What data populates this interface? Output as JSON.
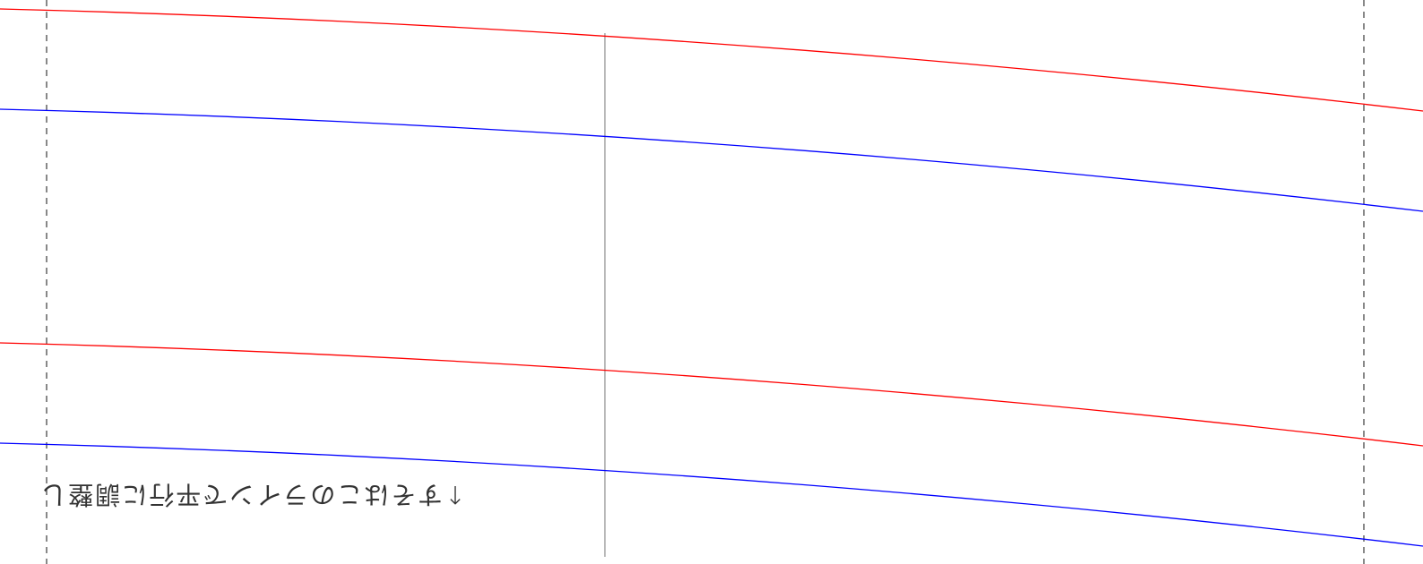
{
  "diagram": {
    "caption": "↑すそはこのラインで平行に調整し",
    "colors": {
      "background": "#ffffff",
      "upper_curve": "#ff0000",
      "lower_curve": "#0000ff",
      "center_line": "#888888",
      "guide_line": "#555555",
      "caption_text": "#333333"
    },
    "line_styles": {
      "guides": "dashed",
      "center": "solid"
    },
    "curve_pairs": [
      {
        "name": "top-pair",
        "colors": [
          "#ff0000",
          "#0000ff"
        ]
      },
      {
        "name": "bottom-pair",
        "colors": [
          "#ff0000",
          "#0000ff"
        ]
      }
    ]
  }
}
